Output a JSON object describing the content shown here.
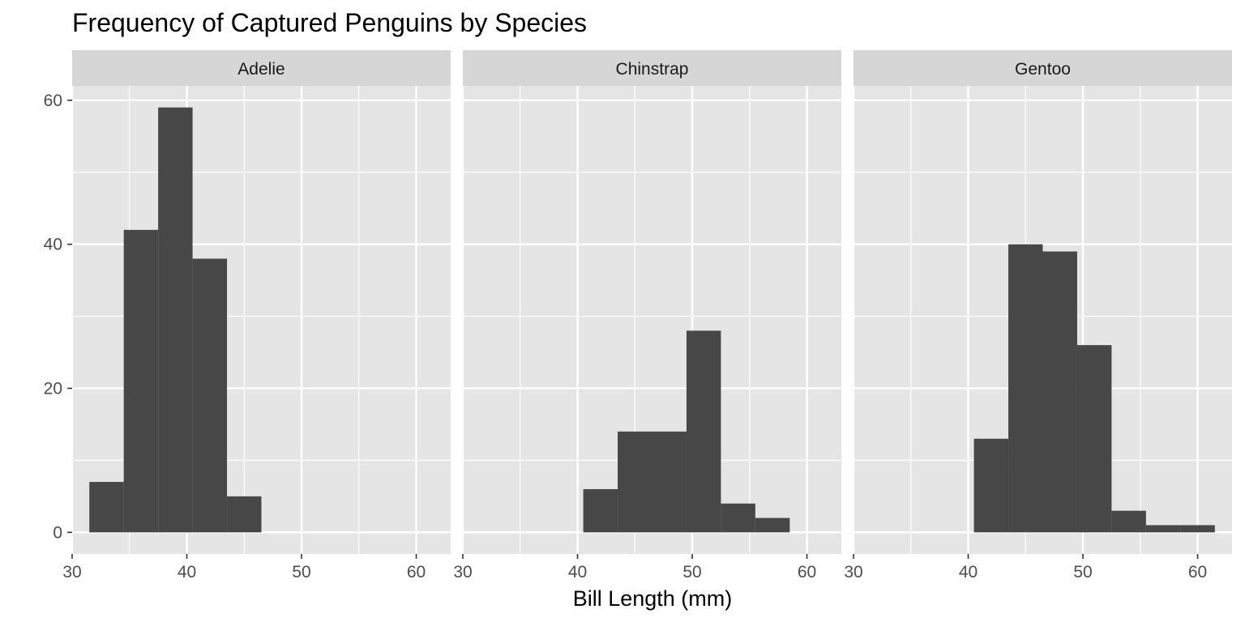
{
  "chart_data": {
    "type": "bar",
    "title": "Frequency of Captured Penguins by Species",
    "xlabel": "Bill Length (mm)",
    "ylabel": "",
    "xlim": [
      30,
      63
    ],
    "ylim": [
      -3,
      62
    ],
    "xticks": [
      30,
      40,
      50,
      60
    ],
    "yticks": [
      0,
      20,
      40,
      60
    ],
    "grid": true,
    "bin_width": 3,
    "bar_color": "#474747",
    "panel_bg": "#e5e5e5",
    "strip_bg": "#d6d6d6",
    "grid_color": "#ffffff",
    "facets": [
      {
        "name": "Adelie",
        "bins": [
          {
            "x0": 31.5,
            "x1": 34.5,
            "count": 7
          },
          {
            "x0": 34.5,
            "x1": 37.5,
            "count": 42
          },
          {
            "x0": 37.5,
            "x1": 40.5,
            "count": 59
          },
          {
            "x0": 40.5,
            "x1": 43.5,
            "count": 38
          },
          {
            "x0": 43.5,
            "x1": 46.5,
            "count": 5
          }
        ]
      },
      {
        "name": "Chinstrap",
        "bins": [
          {
            "x0": 40.5,
            "x1": 43.5,
            "count": 6
          },
          {
            "x0": 43.5,
            "x1": 46.5,
            "count": 14
          },
          {
            "x0": 46.5,
            "x1": 49.5,
            "count": 14
          },
          {
            "x0": 49.5,
            "x1": 52.5,
            "count": 28
          },
          {
            "x0": 52.5,
            "x1": 55.5,
            "count": 4
          },
          {
            "x0": 55.5,
            "x1": 58.5,
            "count": 2
          }
        ]
      },
      {
        "name": "Gentoo",
        "bins": [
          {
            "x0": 40.5,
            "x1": 43.5,
            "count": 13
          },
          {
            "x0": 43.5,
            "x1": 46.5,
            "count": 40
          },
          {
            "x0": 46.5,
            "x1": 49.5,
            "count": 39
          },
          {
            "x0": 49.5,
            "x1": 52.5,
            "count": 26
          },
          {
            "x0": 52.5,
            "x1": 55.5,
            "count": 3
          },
          {
            "x0": 55.5,
            "x1": 58.5,
            "count": 1
          },
          {
            "x0": 58.5,
            "x1": 61.5,
            "count": 1
          }
        ]
      }
    ]
  }
}
